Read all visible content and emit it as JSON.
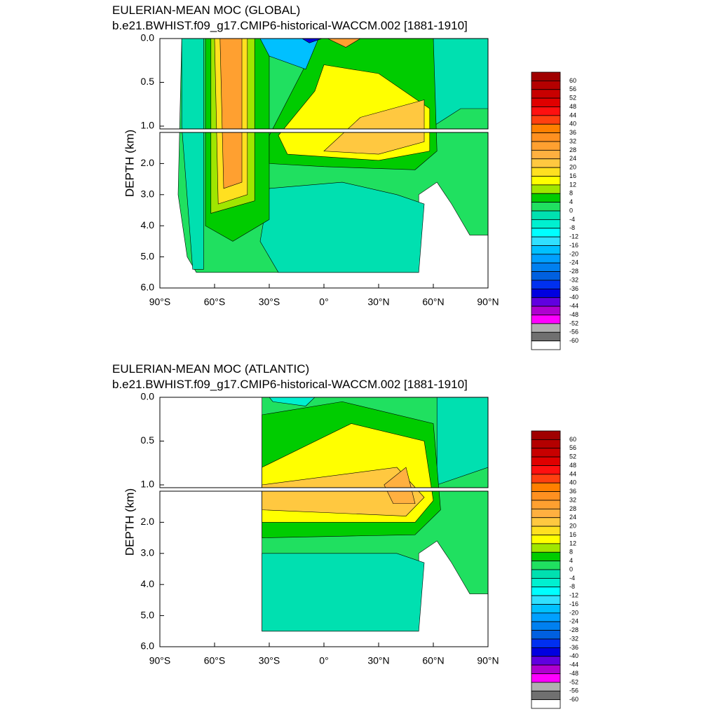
{
  "chart_data": [
    {
      "type": "contour",
      "title": "EULERIAN-MEAN MOC (GLOBAL)",
      "subtitle": "b.e21.BWHIST.f09_g17.CMIP6-historical-WACCM.002 [1881-1910]",
      "ylabel": "DEPTH (km)",
      "xlim": [
        -90,
        90
      ],
      "ylim": [
        0,
        6
      ],
      "xticks": [
        {
          "value": -90,
          "label": "90°S"
        },
        {
          "value": -60,
          "label": "60°S"
        },
        {
          "value": -30,
          "label": "30°S"
        },
        {
          "value": 0,
          "label": "0°"
        },
        {
          "value": 30,
          "label": "30°N"
        },
        {
          "value": 60,
          "label": "60°N"
        },
        {
          "value": 90,
          "label": "90°N"
        }
      ],
      "yticks": [
        {
          "value": 0,
          "label": "0.0"
        },
        {
          "value": 0.5,
          "label": "0.5"
        },
        {
          "value": 1,
          "label": "1.0"
        },
        {
          "value": 2,
          "label": "2.0"
        },
        {
          "value": 3,
          "label": "3.0"
        },
        {
          "value": 4,
          "label": "4.0"
        },
        {
          "value": 5,
          "label": "5.0"
        },
        {
          "value": 6,
          "label": "6.0"
        }
      ],
      "levels": [
        60,
        56,
        52,
        48,
        44,
        40,
        36,
        32,
        28,
        24,
        20,
        16,
        12,
        8,
        4,
        0,
        -4,
        -8,
        -12,
        -16,
        -20,
        -24,
        -28,
        -32,
        -36,
        -40,
        -44,
        -48,
        -52,
        -56,
        -60
      ],
      "colors": [
        "#a00000",
        "#b40000",
        "#c80000",
        "#e00000",
        "#ff1010",
        "#ff4010",
        "#ff8000",
        "#ff9020",
        "#ffa030",
        "#ffb040",
        "#ffc840",
        "#ffe020",
        "#ffff00",
        "#a0e600",
        "#00cc00",
        "#20e060",
        "#00e0b0",
        "#00f0d0",
        "#00ffff",
        "#30e0ff",
        "#00c0ff",
        "#00a0ff",
        "#0080f0",
        "#0060e0",
        "#0030f0",
        "#0000e0",
        "#6000e0",
        "#b000d0",
        "#ff00ff",
        "#b0b0b0",
        "#707070",
        "#ffffff"
      ],
      "regions": [
        {
          "value": 2,
          "lat": [
            -78,
            90,
            90,
            80,
            70,
            62,
            52,
            52,
            -70,
            -75,
            -80
          ],
          "depth": [
            0,
            0,
            4.3,
            4.3,
            3.3,
            2.6,
            3.0,
            5.5,
            5.5,
            5.0,
            3.0
          ]
        },
        {
          "value": -2,
          "lat": [
            -78,
            -66,
            -66,
            -72,
            -78
          ],
          "depth": [
            0,
            0,
            5.4,
            5.4,
            1.0
          ]
        },
        {
          "value": -2,
          "lat": [
            -30,
            10,
            40,
            55,
            52,
            -25,
            -35
          ],
          "depth": [
            2.8,
            2.6,
            3.0,
            3.3,
            5.5,
            5.5,
            4.5
          ]
        },
        {
          "value": -2,
          "lat": [
            60,
            90,
            90,
            75,
            60
          ],
          "depth": [
            0,
            0,
            0.8,
            0.8,
            1.0
          ]
        },
        {
          "value": 6,
          "lat": [
            -65,
            -30,
            -30,
            -50,
            -65
          ],
          "depth": [
            0,
            0,
            3.8,
            4.5,
            4.0
          ]
        },
        {
          "value": 10,
          "lat": [
            -62,
            -38,
            -38,
            -62
          ],
          "depth": [
            0,
            0,
            3.2,
            3.6
          ]
        },
        {
          "value": 18,
          "lat": [
            -60,
            -42,
            -42,
            -58
          ],
          "depth": [
            0,
            0,
            3.0,
            3.3
          ]
        },
        {
          "value": 30,
          "lat": [
            -57,
            -45,
            -45,
            -55
          ],
          "depth": [
            0,
            0,
            2.6,
            2.8
          ]
        },
        {
          "value": 6,
          "lat": [
            -5,
            60,
            62,
            50,
            0,
            -30,
            -30,
            -10
          ],
          "depth": [
            0,
            0,
            1.6,
            2.2,
            2.1,
            2.0,
            1.1,
            0.3
          ]
        },
        {
          "value": 14,
          "lat": [
            0,
            30,
            58,
            58,
            30,
            -20,
            -25,
            -5
          ],
          "depth": [
            0.3,
            0.4,
            0.8,
            1.6,
            1.9,
            1.7,
            1.1,
            0.6
          ]
        },
        {
          "value": 22,
          "lat": [
            20,
            55,
            55,
            30,
            0
          ],
          "depth": [
            0.9,
            0.7,
            1.3,
            1.7,
            1.6
          ]
        },
        {
          "value": -20,
          "lat": [
            -35,
            -3,
            -10,
            -30
          ],
          "depth": [
            0,
            0,
            0.35,
            0.2
          ]
        },
        {
          "value": -40,
          "lat": [
            -12,
            -1,
            -8
          ],
          "depth": [
            0,
            0,
            0.05
          ]
        },
        {
          "value": 30,
          "lat": [
            2,
            20,
            12
          ],
          "depth": [
            0,
            0,
            0.1
          ]
        }
      ]
    },
    {
      "type": "contour",
      "title": "EULERIAN-MEAN MOC (ATLANTIC)",
      "subtitle": "b.e21.BWHIST.f09_g17.CMIP6-historical-WACCM.002 [1881-1910]",
      "ylabel": "DEPTH (km)",
      "xlim": [
        -90,
        90
      ],
      "ylim": [
        0,
        6
      ],
      "xticks": [
        {
          "value": -90,
          "label": "90°S"
        },
        {
          "value": -60,
          "label": "60°S"
        },
        {
          "value": -30,
          "label": "30°S"
        },
        {
          "value": 0,
          "label": "0°"
        },
        {
          "value": 30,
          "label": "30°N"
        },
        {
          "value": 60,
          "label": "60°N"
        },
        {
          "value": 90,
          "label": "90°N"
        }
      ],
      "yticks": [
        {
          "value": 0,
          "label": "0.0"
        },
        {
          "value": 0.5,
          "label": "0.5"
        },
        {
          "value": 1,
          "label": "1.0"
        },
        {
          "value": 2,
          "label": "2.0"
        },
        {
          "value": 3,
          "label": "3.0"
        },
        {
          "value": 4,
          "label": "4.0"
        },
        {
          "value": 5,
          "label": "5.0"
        },
        {
          "value": 6,
          "label": "6.0"
        }
      ],
      "levels": [
        60,
        56,
        52,
        48,
        44,
        40,
        36,
        32,
        28,
        24,
        20,
        16,
        12,
        8,
        4,
        0,
        -4,
        -8,
        -12,
        -16,
        -20,
        -24,
        -28,
        -32,
        -36,
        -40,
        -44,
        -48,
        -52,
        -56,
        -60
      ],
      "colors": [
        "#a00000",
        "#b40000",
        "#c80000",
        "#e00000",
        "#ff1010",
        "#ff4010",
        "#ff8000",
        "#ff9020",
        "#ffa030",
        "#ffb040",
        "#ffc840",
        "#ffe020",
        "#ffff00",
        "#a0e600",
        "#00cc00",
        "#20e060",
        "#00e0b0",
        "#00f0d0",
        "#00ffff",
        "#30e0ff",
        "#00c0ff",
        "#00a0ff",
        "#0080f0",
        "#0060e0",
        "#0030f0",
        "#0000e0",
        "#6000e0",
        "#b000d0",
        "#ff00ff",
        "#b0b0b0",
        "#707070",
        "#ffffff"
      ],
      "regions": [
        {
          "value": 2,
          "lat": [
            -34,
            90,
            90,
            80,
            70,
            62,
            52,
            52,
            -34
          ],
          "depth": [
            0,
            0,
            4.3,
            4.3,
            3.3,
            2.6,
            3.0,
            5.5,
            5.5
          ]
        },
        {
          "value": -2,
          "lat": [
            -34,
            40,
            55,
            52,
            -34
          ],
          "depth": [
            3.0,
            3.0,
            3.3,
            5.5,
            5.5
          ]
        },
        {
          "value": -2,
          "lat": [
            62,
            90,
            90,
            62
          ],
          "depth": [
            0,
            0,
            0.8,
            1.0
          ]
        },
        {
          "value": -6,
          "lat": [
            -30,
            -5,
            -10,
            -28
          ],
          "depth": [
            0,
            0,
            0.1,
            0.05
          ]
        },
        {
          "value": 6,
          "lat": [
            -34,
            10,
            60,
            64,
            50,
            -34
          ],
          "depth": [
            0.2,
            0.05,
            0.3,
            1.6,
            2.4,
            2.5
          ]
        },
        {
          "value": 14,
          "lat": [
            -34,
            15,
            55,
            60,
            50,
            -34
          ],
          "depth": [
            0.8,
            0.3,
            0.5,
            1.3,
            2.0,
            2.0
          ]
        },
        {
          "value": 22,
          "lat": [
            -34,
            40,
            55,
            45,
            -34
          ],
          "depth": [
            1.0,
            0.8,
            1.2,
            1.8,
            1.6
          ]
        },
        {
          "value": 26,
          "lat": [
            33,
            45,
            50,
            38
          ],
          "depth": [
            1.0,
            0.8,
            1.4,
            1.4
          ]
        }
      ]
    }
  ]
}
